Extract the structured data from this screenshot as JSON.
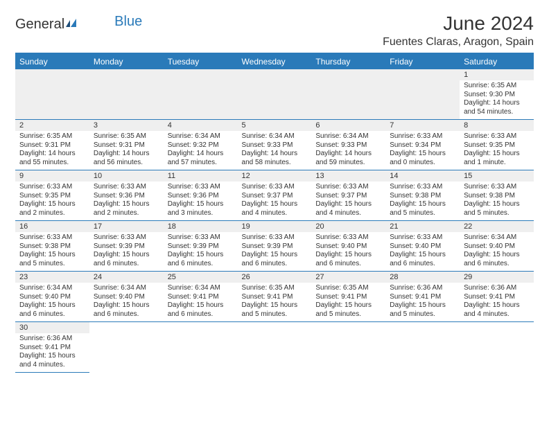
{
  "logo": {
    "general": "General",
    "blue": "Blue"
  },
  "title": "June 2024",
  "location": "Fuentes Claras, Aragon, Spain",
  "colors": {
    "accent": "#2a7ab9",
    "header_bg": "#2a7ab9",
    "header_text": "#ffffff",
    "daynum_bg": "#efefef",
    "text": "#333333",
    "page_bg": "#ffffff"
  },
  "calendar": {
    "type": "table",
    "columns": [
      "Sunday",
      "Monday",
      "Tuesday",
      "Wednesday",
      "Thursday",
      "Friday",
      "Saturday"
    ],
    "lead_blanks": 6,
    "days": [
      {
        "n": 1,
        "sr": "6:35 AM",
        "ss": "9:30 PM",
        "dl": "14 hours and 54 minutes."
      },
      {
        "n": 2,
        "sr": "6:35 AM",
        "ss": "9:31 PM",
        "dl": "14 hours and 55 minutes."
      },
      {
        "n": 3,
        "sr": "6:35 AM",
        "ss": "9:31 PM",
        "dl": "14 hours and 56 minutes."
      },
      {
        "n": 4,
        "sr": "6:34 AM",
        "ss": "9:32 PM",
        "dl": "14 hours and 57 minutes."
      },
      {
        "n": 5,
        "sr": "6:34 AM",
        "ss": "9:33 PM",
        "dl": "14 hours and 58 minutes."
      },
      {
        "n": 6,
        "sr": "6:34 AM",
        "ss": "9:33 PM",
        "dl": "14 hours and 59 minutes."
      },
      {
        "n": 7,
        "sr": "6:33 AM",
        "ss": "9:34 PM",
        "dl": "15 hours and 0 minutes."
      },
      {
        "n": 8,
        "sr": "6:33 AM",
        "ss": "9:35 PM",
        "dl": "15 hours and 1 minute."
      },
      {
        "n": 9,
        "sr": "6:33 AM",
        "ss": "9:35 PM",
        "dl": "15 hours and 2 minutes."
      },
      {
        "n": 10,
        "sr": "6:33 AM",
        "ss": "9:36 PM",
        "dl": "15 hours and 2 minutes."
      },
      {
        "n": 11,
        "sr": "6:33 AM",
        "ss": "9:36 PM",
        "dl": "15 hours and 3 minutes."
      },
      {
        "n": 12,
        "sr": "6:33 AM",
        "ss": "9:37 PM",
        "dl": "15 hours and 4 minutes."
      },
      {
        "n": 13,
        "sr": "6:33 AM",
        "ss": "9:37 PM",
        "dl": "15 hours and 4 minutes."
      },
      {
        "n": 14,
        "sr": "6:33 AM",
        "ss": "9:38 PM",
        "dl": "15 hours and 5 minutes."
      },
      {
        "n": 15,
        "sr": "6:33 AM",
        "ss": "9:38 PM",
        "dl": "15 hours and 5 minutes."
      },
      {
        "n": 16,
        "sr": "6:33 AM",
        "ss": "9:38 PM",
        "dl": "15 hours and 5 minutes."
      },
      {
        "n": 17,
        "sr": "6:33 AM",
        "ss": "9:39 PM",
        "dl": "15 hours and 6 minutes."
      },
      {
        "n": 18,
        "sr": "6:33 AM",
        "ss": "9:39 PM",
        "dl": "15 hours and 6 minutes."
      },
      {
        "n": 19,
        "sr": "6:33 AM",
        "ss": "9:39 PM",
        "dl": "15 hours and 6 minutes."
      },
      {
        "n": 20,
        "sr": "6:33 AM",
        "ss": "9:40 PM",
        "dl": "15 hours and 6 minutes."
      },
      {
        "n": 21,
        "sr": "6:33 AM",
        "ss": "9:40 PM",
        "dl": "15 hours and 6 minutes."
      },
      {
        "n": 22,
        "sr": "6:34 AM",
        "ss": "9:40 PM",
        "dl": "15 hours and 6 minutes."
      },
      {
        "n": 23,
        "sr": "6:34 AM",
        "ss": "9:40 PM",
        "dl": "15 hours and 6 minutes."
      },
      {
        "n": 24,
        "sr": "6:34 AM",
        "ss": "9:40 PM",
        "dl": "15 hours and 6 minutes."
      },
      {
        "n": 25,
        "sr": "6:34 AM",
        "ss": "9:41 PM",
        "dl": "15 hours and 6 minutes."
      },
      {
        "n": 26,
        "sr": "6:35 AM",
        "ss": "9:41 PM",
        "dl": "15 hours and 5 minutes."
      },
      {
        "n": 27,
        "sr": "6:35 AM",
        "ss": "9:41 PM",
        "dl": "15 hours and 5 minutes."
      },
      {
        "n": 28,
        "sr": "6:36 AM",
        "ss": "9:41 PM",
        "dl": "15 hours and 5 minutes."
      },
      {
        "n": 29,
        "sr": "6:36 AM",
        "ss": "9:41 PM",
        "dl": "15 hours and 4 minutes."
      },
      {
        "n": 30,
        "sr": "6:36 AM",
        "ss": "9:41 PM",
        "dl": "15 hours and 4 minutes."
      }
    ],
    "labels": {
      "sunrise": "Sunrise:",
      "sunset": "Sunset:",
      "daylight": "Daylight:"
    }
  }
}
